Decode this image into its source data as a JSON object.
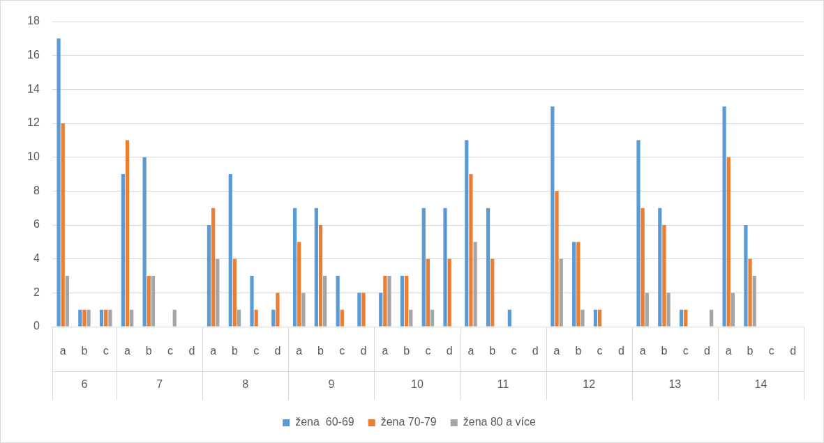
{
  "chart_data": {
    "type": "bar",
    "categories": [
      "a",
      "b",
      "c",
      "a",
      "b",
      "c",
      "d",
      "a",
      "b",
      "c",
      "d",
      "a",
      "b",
      "c",
      "d",
      "a",
      "b",
      "c",
      "d",
      "a",
      "b",
      "c",
      "d",
      "a",
      "b",
      "c",
      "d",
      "a",
      "b",
      "c",
      "d",
      "a",
      "b",
      "c",
      "d"
    ],
    "annotations": [
      "6",
      "7",
      "8",
      "9",
      "10",
      "11",
      "12",
      "13",
      "14"
    ],
    "series": [
      {
        "name": "žena  60-69",
        "color": "#5b9bd5",
        "values": [
          17,
          1,
          1,
          9,
          10,
          0,
          0,
          6,
          9,
          3,
          1,
          7,
          7,
          3,
          2,
          2,
          3,
          7,
          7,
          11,
          7,
          1,
          0,
          13,
          5,
          1,
          0,
          11,
          7,
          1,
          0,
          13,
          6,
          0,
          0
        ]
      },
      {
        "name": "žena 70-79",
        "color": "#ed7d31",
        "values": [
          12,
          1,
          1,
          11,
          3,
          0,
          0,
          7,
          4,
          1,
          2,
          5,
          6,
          1,
          2,
          3,
          3,
          4,
          4,
          9,
          4,
          0,
          0,
          8,
          5,
          1,
          0,
          7,
          6,
          1,
          0,
          10,
          4,
          0,
          0
        ]
      },
      {
        "name": "žena 80 a více",
        "color": "#a5a5a5",
        "values": [
          3,
          1,
          1,
          1,
          3,
          1,
          0,
          4,
          1,
          0,
          0,
          2,
          3,
          0,
          0,
          3,
          1,
          1,
          0,
          5,
          0,
          0,
          0,
          4,
          1,
          0,
          0,
          2,
          2,
          0,
          1,
          2,
          3,
          0,
          0
        ]
      }
    ],
    "ylim": [
      0,
      18
    ],
    "yticks": [
      0,
      2,
      4,
      6,
      8,
      10,
      12,
      14,
      16,
      18
    ],
    "grid": "y",
    "legend": "bottom"
  }
}
